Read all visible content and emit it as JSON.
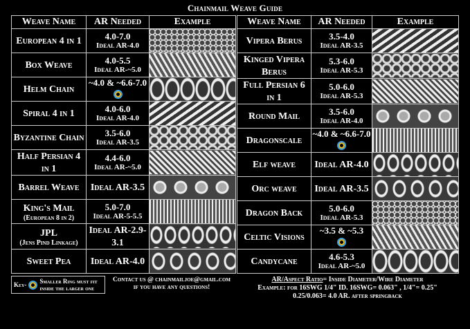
{
  "title": "Chainmail Weave Guide",
  "headers": {
    "name": "Weave Name",
    "ar": "AR Needed",
    "example": "Example"
  },
  "colors": {
    "ring_outer": "#3aa0e0",
    "ring_inner": "#f0c020",
    "background": "#000000",
    "border": "#cccccc"
  },
  "left_table": [
    {
      "name": "European 4 in 1",
      "sub": "",
      "ar": "4.0-7.0",
      "ideal": "Ideal AR-4.0",
      "ring": false
    },
    {
      "name": "Box Weave",
      "sub": "",
      "ar": "4.0-5.5",
      "ideal": "Ideal AR-~5.0",
      "ring": false
    },
    {
      "name": "Helm Chain",
      "sub": "",
      "ar": "~4.0 & ~6.6-7.0",
      "ideal": "",
      "ring": true
    },
    {
      "name": "Spiral 4 in 1",
      "sub": "",
      "ar": "4.0-6.0",
      "ideal": "Ideal AR-4.0",
      "ring": false
    },
    {
      "name": "Byzantine Chain",
      "sub": "",
      "ar": "3.5-6.0",
      "ideal": "Ideal AR-3.5",
      "ring": false
    },
    {
      "name": "Half Persian 4 in 1",
      "sub": "",
      "ar": "4.4-6.0",
      "ideal": "Ideal AR-~5.0",
      "ring": false
    },
    {
      "name": "Barrel Weave",
      "sub": "",
      "ar": "",
      "ideal": "Ideal AR-3.5",
      "ring": false
    },
    {
      "name": "King's Mail",
      "sub": "(European 8 in 2)",
      "ar": "5.0-7.0",
      "ideal": "Ideal AR-5-5.5",
      "ring": false
    },
    {
      "name": "JPL",
      "sub": "(Jens Pind Linkage)",
      "ar": "",
      "ideal": "Ideal AR-2.9-3.1",
      "ring": false
    },
    {
      "name": "Sweet Pea",
      "sub": "",
      "ar": "",
      "ideal": "Ideal AR-4.0",
      "ring": false
    }
  ],
  "right_table": [
    {
      "name": "Vipera Berus",
      "sub": "",
      "ar": "3.5-4.0",
      "ideal": "Ideal AR-3.5",
      "ring": false
    },
    {
      "name": "Kinged Vipera Berus",
      "sub": "",
      "ar": "5.3-6.0",
      "ideal": "Ideal AR-5.3",
      "ring": false
    },
    {
      "name": "Full Persian 6 in 1",
      "sub": "",
      "ar": "5.0-6.0",
      "ideal": "Ideal AR-5.3",
      "ring": false
    },
    {
      "name": "Round Mail",
      "sub": "",
      "ar": "3.5-6.0",
      "ideal": "Ideal AR-4.0",
      "ring": false
    },
    {
      "name": "Dragonscale",
      "sub": "",
      "ar": "~4.0 & ~6.6-7.0",
      "ideal": "",
      "ring": true
    },
    {
      "name": "Elf weave",
      "sub": "",
      "ar": "",
      "ideal": "Ideal AR-4.0",
      "ring": false
    },
    {
      "name": "Orc weave",
      "sub": "",
      "ar": "",
      "ideal": "Ideal AR-3.5",
      "ring": false
    },
    {
      "name": "Dragon Back",
      "sub": "",
      "ar": "5.0-6.0",
      "ideal": "Ideal AR-5.3",
      "ring": false
    },
    {
      "name": "Celtic Visions",
      "sub": "",
      "ar": "~3.5 & ~5.3",
      "ideal": "",
      "ring": true
    },
    {
      "name": "Candycane",
      "sub": "",
      "ar": "4.6-5.3",
      "ideal": "Ideal AR-~5.0",
      "ring": false
    }
  ],
  "key": {
    "label": "Key-",
    "line1": "Smaller Ring must fit",
    "line2": "inside the larger one",
    "icon": "ring-in-ring-icon"
  },
  "contact": {
    "line1": "Contact us @ chainmailjoe@gmail.com",
    "line2": "if you have any questions!"
  },
  "footer": {
    "term": "AR/Aspect Ratio",
    "definition": "= Inside Diameter/Wire Diameter",
    "line2": "Example: for 16SWG 1/4\" ID. 16SWG= 0.063\" , 1/4\"= 0.25\"",
    "line3": "0.25/0.063= 4.0 AR. after springback"
  }
}
